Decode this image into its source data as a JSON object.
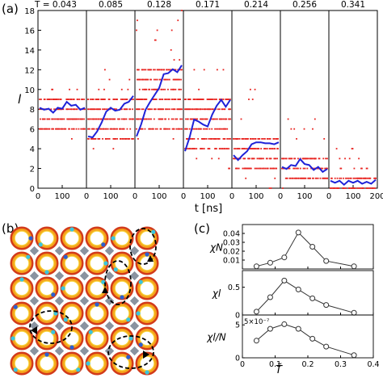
{
  "panels": {
    "a": {
      "label": "(a)"
    },
    "b": {
      "label": "(b)"
    },
    "c": {
      "label": "(c)"
    }
  },
  "chart_data": [
    {
      "id": "a",
      "type": "scatter",
      "panel_label": "(a)",
      "xlabel": "t [ns]",
      "ylabel": "l",
      "ylim": [
        0,
        18
      ],
      "yticks": [
        "0",
        "2",
        "4",
        "6",
        "8",
        "10",
        "12",
        "14",
        "16",
        "18"
      ],
      "xlim": [
        0,
        200
      ],
      "xticks": [
        "0",
        "100",
        "200"
      ],
      "temperatures": [
        "T = 0.043",
        "0.085",
        "0.128",
        "0.171",
        "0.214",
        "0.256",
        "0.341"
      ],
      "grid": false,
      "colors": {
        "points": "#e8231f",
        "mean": "#1e22d8"
      },
      "series": [
        {
          "levels": [
            6,
            7,
            8,
            9
          ],
          "spread": [
            5,
            10
          ],
          "mean": [
            8.0,
            8.1,
            7.9,
            7.8,
            8.0,
            8.2,
            8.6,
            8.5,
            8.3,
            8.1,
            8.0
          ]
        },
        {
          "levels": [
            5,
            6,
            7,
            8,
            9
          ],
          "spread": [
            3,
            12
          ],
          "mean": [
            5.1,
            5.3,
            5.6,
            6.8,
            7.6,
            8.3,
            7.7,
            8.1,
            8.4,
            8.9,
            9.2
          ]
        },
        {
          "levels": [
            6,
            7,
            8,
            9,
            10,
            11,
            12
          ],
          "spread": [
            4,
            18
          ],
          "mean": [
            5.1,
            6.6,
            7.8,
            8.9,
            9.3,
            10.3,
            11.4,
            11.8,
            11.9,
            11.9,
            12.3
          ]
        },
        {
          "levels": [
            4,
            5,
            6,
            7,
            8,
            9
          ],
          "spread": [
            2,
            13
          ],
          "mean": [
            3.6,
            5.3,
            6.8,
            6.9,
            6.3,
            6.4,
            7.3,
            8.5,
            8.8,
            8.4,
            8.8
          ]
        },
        {
          "levels": [
            2,
            3,
            4,
            5
          ],
          "spread": [
            0,
            10
          ],
          "mean": [
            3.2,
            3.0,
            3.2,
            3.9,
            4.3,
            4.8,
            4.5,
            4.7,
            4.4,
            4.6,
            4.5
          ]
        },
        {
          "levels": [
            1,
            2,
            3
          ],
          "spread": [
            0,
            7
          ],
          "mean": [
            2.0,
            2.1,
            2.2,
            2.4,
            2.8,
            2.6,
            2.2,
            2.0,
            2.0,
            1.8,
            1.8
          ]
        },
        {
          "levels": [
            0,
            1
          ],
          "spread": [
            0,
            4
          ],
          "mean": [
            0.6,
            0.7,
            0.6,
            0.5,
            0.6,
            0.7,
            0.6,
            0.6,
            0.5,
            0.6,
            0.7
          ]
        }
      ]
    },
    {
      "id": "c",
      "type": "line",
      "panel_label": "(c)",
      "xlabel": "T̃",
      "xlim": [
        0,
        0.4
      ],
      "xticks": [
        "0",
        "0.1",
        "0.2",
        "0.3",
        "0.4"
      ],
      "x": [
        0.043,
        0.085,
        0.128,
        0.171,
        0.214,
        0.256,
        0.341
      ],
      "grid": false,
      "series": [
        {
          "ylabel": "χN",
          "ylim": [
            0,
            0.05
          ],
          "yticks": [
            "0.01",
            "0.02",
            "0.03",
            "0.04"
          ],
          "scale_note": "",
          "values": [
            0.003,
            0.007,
            0.013,
            0.041,
            0.025,
            0.009,
            0.003
          ]
        },
        {
          "ylabel": "χl",
          "ylim": [
            0,
            0.8
          ],
          "yticks": [
            "0",
            "0.5"
          ],
          "scale_note": "",
          "values": [
            0.06,
            0.32,
            0.62,
            0.46,
            0.3,
            0.18,
            0.04
          ]
        },
        {
          "ylabel": "χl/N",
          "ylim": [
            0,
            6.5
          ],
          "yticks": [
            "0",
            "5"
          ],
          "scale_note": "5×10⁻⁷",
          "values": [
            2.6,
            4.4,
            5.1,
            4.4,
            2.9,
            1.7,
            0.4
          ]
        }
      ]
    }
  ],
  "lattice": {
    "colors": {
      "ring_outer": "#d23a1a",
      "ring_mid": "#f5a31c",
      "ring_inner": "#f7d53a",
      "connector": "#8a93a0",
      "blue_patch": "#2c5fd0",
      "cyan_patch": "#38c6e0",
      "loop": "#000000"
    }
  }
}
